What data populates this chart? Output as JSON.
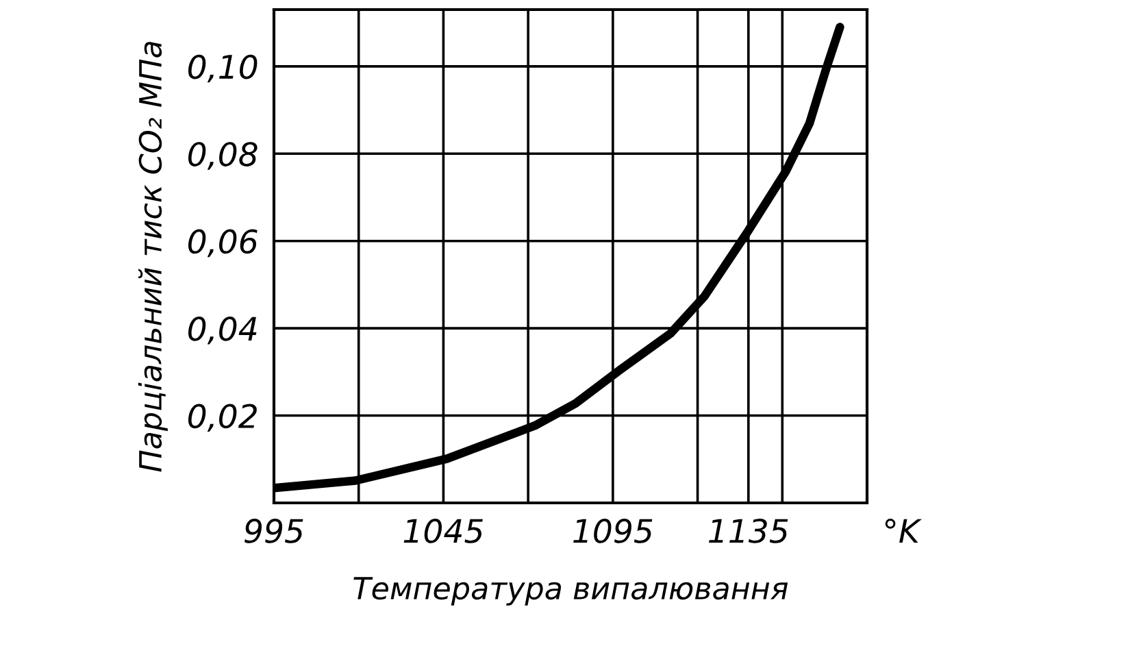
{
  "chart_data": {
    "type": "line",
    "xlabel": "Температура випалювання",
    "ylabel": "Парціальний тиск CO₂ МПа",
    "annotations": [
      "°K"
    ],
    "x": [
      995,
      1019,
      1046,
      1072,
      1084,
      1097,
      1112,
      1122,
      1135,
      1146,
      1153,
      1158,
      1162
    ],
    "series": [
      {
        "color": "#000000",
        "values": [
          0.0034,
          0.0051,
          0.0101,
          0.0177,
          0.0228,
          0.0304,
          0.0388,
          0.0473,
          0.0624,
          0.0759,
          0.0869,
          0.0996,
          0.109
        ]
      }
    ],
    "xlim": [
      995,
      1170
    ],
    "ylim": [
      0,
      0.113
    ],
    "xticks": [
      995,
      {
        "value": 1020,
        "label": null
      },
      1045,
      {
        "value": 1070,
        "label": null
      },
      1095,
      {
        "value": 1120,
        "label": null
      },
      1135,
      {
        "value": 1145,
        "label": null
      }
    ],
    "yticks": [
      {
        "value": 0.02,
        "label": "0,02"
      },
      {
        "value": 0.04,
        "label": "0,04"
      },
      {
        "value": 0.06,
        "label": "0,06"
      },
      {
        "value": 0.08,
        "label": "0,08"
      },
      {
        "value": 0.1,
        "label": "0,10"
      }
    ],
    "grid": true,
    "marker": "none",
    "line_style": "solid",
    "legend": false
  }
}
